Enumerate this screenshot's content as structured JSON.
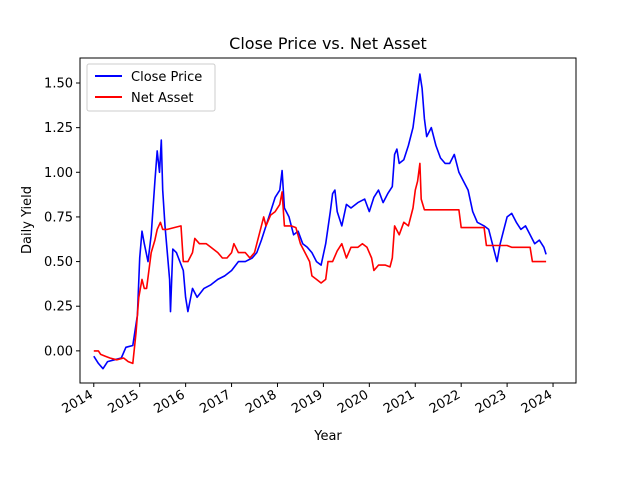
{
  "chart_data": {
    "type": "line",
    "title": "Close Price vs. Net Asset",
    "xlabel": "Year",
    "ylabel": "Daily Yield",
    "xlim": [
      2013.7,
      2024.5
    ],
    "ylim": [
      -0.18,
      1.64
    ],
    "x_ticks": [
      2014,
      2015,
      2016,
      2017,
      2018,
      2019,
      2020,
      2021,
      2022,
      2023,
      2024
    ],
    "x_tick_labels": [
      "2014",
      "2015",
      "2016",
      "2017",
      "2018",
      "2019",
      "2020",
      "2021",
      "2022",
      "2023",
      "2024"
    ],
    "y_ticks": [
      0.0,
      0.25,
      0.5,
      0.75,
      1.0,
      1.25,
      1.5
    ],
    "y_tick_labels": [
      "0.00",
      "0.25",
      "0.50",
      "0.75",
      "1.00",
      "1.25",
      "1.50"
    ],
    "grid": false,
    "legend_position": "top-left",
    "series": [
      {
        "name": "Close Price",
        "color": "#0000ff",
        "points": [
          [
            2014.0,
            -0.03
          ],
          [
            2014.1,
            -0.07
          ],
          [
            2014.2,
            -0.1
          ],
          [
            2014.3,
            -0.06
          ],
          [
            2014.45,
            -0.05
          ],
          [
            2014.6,
            -0.04
          ],
          [
            2014.7,
            0.02
          ],
          [
            2014.85,
            0.03
          ],
          [
            2014.95,
            0.2
          ],
          [
            2015.0,
            0.52
          ],
          [
            2015.05,
            0.67
          ],
          [
            2015.1,
            0.6
          ],
          [
            2015.18,
            0.5
          ],
          [
            2015.25,
            0.65
          ],
          [
            2015.33,
            0.95
          ],
          [
            2015.38,
            1.12
          ],
          [
            2015.43,
            1.0
          ],
          [
            2015.47,
            1.18
          ],
          [
            2015.5,
            0.9
          ],
          [
            2015.55,
            0.7
          ],
          [
            2015.6,
            0.55
          ],
          [
            2015.65,
            0.4
          ],
          [
            2015.67,
            0.22
          ],
          [
            2015.72,
            0.57
          ],
          [
            2015.8,
            0.55
          ],
          [
            2015.95,
            0.45
          ],
          [
            2016.0,
            0.3
          ],
          [
            2016.05,
            0.22
          ],
          [
            2016.15,
            0.35
          ],
          [
            2016.25,
            0.3
          ],
          [
            2016.4,
            0.35
          ],
          [
            2016.55,
            0.37
          ],
          [
            2016.7,
            0.4
          ],
          [
            2016.85,
            0.42
          ],
          [
            2017.0,
            0.45
          ],
          [
            2017.15,
            0.5
          ],
          [
            2017.3,
            0.5
          ],
          [
            2017.45,
            0.52
          ],
          [
            2017.55,
            0.55
          ],
          [
            2017.65,
            0.62
          ],
          [
            2017.75,
            0.7
          ],
          [
            2017.85,
            0.78
          ],
          [
            2017.95,
            0.86
          ],
          [
            2018.05,
            0.9
          ],
          [
            2018.1,
            1.01
          ],
          [
            2018.15,
            0.8
          ],
          [
            2018.25,
            0.75
          ],
          [
            2018.35,
            0.65
          ],
          [
            2018.45,
            0.67
          ],
          [
            2018.55,
            0.6
          ],
          [
            2018.65,
            0.58
          ],
          [
            2018.75,
            0.55
          ],
          [
            2018.85,
            0.5
          ],
          [
            2018.95,
            0.48
          ],
          [
            2019.05,
            0.6
          ],
          [
            2019.15,
            0.78
          ],
          [
            2019.2,
            0.88
          ],
          [
            2019.25,
            0.9
          ],
          [
            2019.3,
            0.78
          ],
          [
            2019.4,
            0.7
          ],
          [
            2019.5,
            0.82
          ],
          [
            2019.6,
            0.8
          ],
          [
            2019.75,
            0.83
          ],
          [
            2019.9,
            0.85
          ],
          [
            2020.0,
            0.78
          ],
          [
            2020.1,
            0.86
          ],
          [
            2020.2,
            0.9
          ],
          [
            2020.3,
            0.83
          ],
          [
            2020.4,
            0.88
          ],
          [
            2020.5,
            0.92
          ],
          [
            2020.55,
            1.1
          ],
          [
            2020.6,
            1.13
          ],
          [
            2020.65,
            1.05
          ],
          [
            2020.75,
            1.07
          ],
          [
            2020.85,
            1.15
          ],
          [
            2020.95,
            1.25
          ],
          [
            2021.0,
            1.35
          ],
          [
            2021.05,
            1.45
          ],
          [
            2021.1,
            1.55
          ],
          [
            2021.15,
            1.47
          ],
          [
            2021.2,
            1.3
          ],
          [
            2021.25,
            1.2
          ],
          [
            2021.35,
            1.25
          ],
          [
            2021.45,
            1.15
          ],
          [
            2021.55,
            1.08
          ],
          [
            2021.65,
            1.05
          ],
          [
            2021.75,
            1.05
          ],
          [
            2021.85,
            1.1
          ],
          [
            2021.95,
            1.0
          ],
          [
            2022.05,
            0.95
          ],
          [
            2022.15,
            0.9
          ],
          [
            2022.25,
            0.78
          ],
          [
            2022.35,
            0.72
          ],
          [
            2022.5,
            0.7
          ],
          [
            2022.6,
            0.68
          ],
          [
            2022.7,
            0.58
          ],
          [
            2022.78,
            0.5
          ],
          [
            2022.85,
            0.6
          ],
          [
            2022.92,
            0.67
          ],
          [
            2023.0,
            0.75
          ],
          [
            2023.1,
            0.77
          ],
          [
            2023.2,
            0.72
          ],
          [
            2023.3,
            0.68
          ],
          [
            2023.4,
            0.7
          ],
          [
            2023.5,
            0.65
          ],
          [
            2023.6,
            0.6
          ],
          [
            2023.7,
            0.62
          ],
          [
            2023.8,
            0.58
          ],
          [
            2023.85,
            0.54
          ]
        ]
      },
      {
        "name": "Net Asset",
        "color": "#ff0000",
        "points": [
          [
            2014.0,
            0.0
          ],
          [
            2014.1,
            0.0
          ],
          [
            2014.15,
            -0.02
          ],
          [
            2014.25,
            -0.03
          ],
          [
            2014.35,
            -0.04
          ],
          [
            2014.5,
            -0.05
          ],
          [
            2014.65,
            -0.04
          ],
          [
            2014.75,
            -0.06
          ],
          [
            2014.85,
            -0.07
          ],
          [
            2014.92,
            0.1
          ],
          [
            2014.98,
            0.3
          ],
          [
            2015.05,
            0.4
          ],
          [
            2015.1,
            0.35
          ],
          [
            2015.15,
            0.35
          ],
          [
            2015.25,
            0.55
          ],
          [
            2015.33,
            0.62
          ],
          [
            2015.38,
            0.68
          ],
          [
            2015.45,
            0.72
          ],
          [
            2015.5,
            0.68
          ],
          [
            2015.6,
            0.68
          ],
          [
            2015.75,
            0.69
          ],
          [
            2015.9,
            0.7
          ],
          [
            2015.95,
            0.5
          ],
          [
            2016.05,
            0.5
          ],
          [
            2016.15,
            0.55
          ],
          [
            2016.2,
            0.63
          ],
          [
            2016.3,
            0.6
          ],
          [
            2016.45,
            0.6
          ],
          [
            2016.55,
            0.58
          ],
          [
            2016.7,
            0.55
          ],
          [
            2016.8,
            0.52
          ],
          [
            2016.9,
            0.52
          ],
          [
            2017.0,
            0.55
          ],
          [
            2017.05,
            0.6
          ],
          [
            2017.15,
            0.55
          ],
          [
            2017.3,
            0.55
          ],
          [
            2017.4,
            0.52
          ],
          [
            2017.5,
            0.55
          ],
          [
            2017.6,
            0.65
          ],
          [
            2017.7,
            0.75
          ],
          [
            2017.75,
            0.7
          ],
          [
            2017.85,
            0.76
          ],
          [
            2017.95,
            0.78
          ],
          [
            2018.05,
            0.82
          ],
          [
            2018.1,
            0.89
          ],
          [
            2018.15,
            0.7
          ],
          [
            2018.3,
            0.7
          ],
          [
            2018.4,
            0.69
          ],
          [
            2018.5,
            0.6
          ],
          [
            2018.6,
            0.55
          ],
          [
            2018.7,
            0.5
          ],
          [
            2018.75,
            0.42
          ],
          [
            2018.85,
            0.4
          ],
          [
            2018.95,
            0.38
          ],
          [
            2019.05,
            0.4
          ],
          [
            2019.1,
            0.5
          ],
          [
            2019.2,
            0.5
          ],
          [
            2019.3,
            0.56
          ],
          [
            2019.4,
            0.6
          ],
          [
            2019.5,
            0.52
          ],
          [
            2019.6,
            0.58
          ],
          [
            2019.75,
            0.58
          ],
          [
            2019.85,
            0.6
          ],
          [
            2019.95,
            0.58
          ],
          [
            2020.05,
            0.52
          ],
          [
            2020.1,
            0.45
          ],
          [
            2020.2,
            0.48
          ],
          [
            2020.35,
            0.48
          ],
          [
            2020.45,
            0.47
          ],
          [
            2020.5,
            0.52
          ],
          [
            2020.55,
            0.7
          ],
          [
            2020.65,
            0.65
          ],
          [
            2020.75,
            0.72
          ],
          [
            2020.85,
            0.7
          ],
          [
            2020.95,
            0.8
          ],
          [
            2021.0,
            0.9
          ],
          [
            2021.05,
            0.95
          ],
          [
            2021.1,
            1.05
          ],
          [
            2021.13,
            0.85
          ],
          [
            2021.2,
            0.79
          ],
          [
            2021.4,
            0.79
          ],
          [
            2021.6,
            0.79
          ],
          [
            2021.8,
            0.79
          ],
          [
            2021.95,
            0.79
          ],
          [
            2022.0,
            0.69
          ],
          [
            2022.3,
            0.69
          ],
          [
            2022.5,
            0.69
          ],
          [
            2022.55,
            0.59
          ],
          [
            2022.8,
            0.59
          ],
          [
            2023.0,
            0.59
          ],
          [
            2023.1,
            0.58
          ],
          [
            2023.3,
            0.58
          ],
          [
            2023.5,
            0.58
          ],
          [
            2023.55,
            0.5
          ],
          [
            2023.7,
            0.5
          ],
          [
            2023.85,
            0.5
          ]
        ]
      }
    ]
  }
}
